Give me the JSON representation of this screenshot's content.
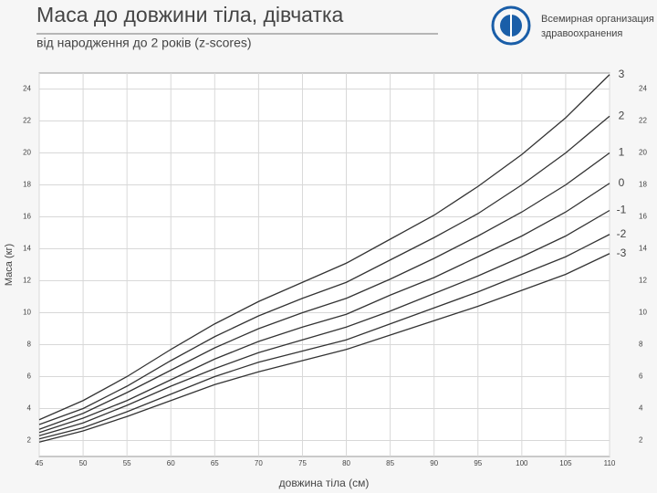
{
  "chart_data": {
    "type": "line",
    "title": "Маса до довжини тіла, дівчатка",
    "subtitle": "від народження до 2 років (z-scores)",
    "x_label": "довжина тіла (см)",
    "y_label": "Маса (кг)",
    "organization": [
      "Всемирная организация",
      "здравоохранения"
    ],
    "x": [
      45,
      50,
      55,
      60,
      65,
      70,
      75,
      80,
      85,
      90,
      95,
      100,
      105,
      110
    ],
    "series": [
      {
        "name": "3",
        "color": "#333333",
        "values": [
          3.3,
          4.5,
          6.0,
          7.7,
          9.3,
          10.7,
          11.9,
          13.1,
          14.6,
          16.1,
          17.9,
          19.9,
          22.2,
          24.9
        ]
      },
      {
        "name": "2",
        "color": "#333333",
        "values": [
          3.0,
          4.0,
          5.4,
          7.0,
          8.5,
          9.8,
          10.9,
          11.9,
          13.3,
          14.7,
          16.2,
          18.0,
          20.0,
          22.3
        ]
      },
      {
        "name": "1",
        "color": "#333333",
        "values": [
          2.7,
          3.7,
          5.0,
          6.4,
          7.8,
          9.0,
          10.0,
          10.9,
          12.1,
          13.4,
          14.8,
          16.3,
          18.0,
          20.0
        ]
      },
      {
        "name": "0",
        "color": "#333333",
        "values": [
          2.5,
          3.4,
          4.5,
          5.8,
          7.1,
          8.2,
          9.1,
          9.9,
          11.1,
          12.2,
          13.5,
          14.8,
          16.3,
          18.1
        ]
      },
      {
        "name": "-1",
        "color": "#333333",
        "values": [
          2.3,
          3.1,
          4.2,
          5.4,
          6.5,
          7.5,
          8.3,
          9.1,
          10.1,
          11.2,
          12.3,
          13.5,
          14.8,
          16.4
        ]
      },
      {
        "name": "-2",
        "color": "#333333",
        "values": [
          2.1,
          2.8,
          3.8,
          4.9,
          6.0,
          6.9,
          7.6,
          8.3,
          9.3,
          10.3,
          11.3,
          12.4,
          13.5,
          14.9
        ]
      },
      {
        "name": "-3",
        "color": "#333333",
        "values": [
          1.9,
          2.6,
          3.5,
          4.5,
          5.5,
          6.3,
          7.0,
          7.7,
          8.6,
          9.5,
          10.4,
          11.4,
          12.4,
          13.7
        ]
      }
    ],
    "xlim": [
      45,
      110
    ],
    "xticks": [
      45,
      50,
      55,
      60,
      65,
      70,
      75,
      80,
      85,
      90,
      95,
      100,
      105,
      110
    ],
    "ylim": [
      1,
      25
    ],
    "yticks": [
      2,
      4,
      6,
      8,
      10,
      12,
      14,
      16,
      18,
      20,
      22,
      24
    ],
    "grid": true
  }
}
